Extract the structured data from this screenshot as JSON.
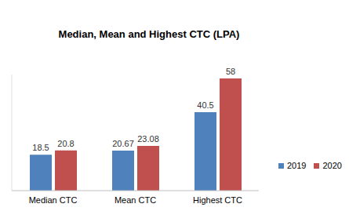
{
  "chart_data": {
    "type": "bar",
    "title": "Median, Mean and Highest CTC (LPA)",
    "categories": [
      "Median CTC",
      "Mean CTC",
      "Highest CTC"
    ],
    "series": [
      {
        "name": "2019",
        "color": "#4f81bd",
        "values": [
          18.5,
          20.67,
          40.5
        ]
      },
      {
        "name": "2020",
        "color": "#c0504d",
        "values": [
          20.8,
          23.08,
          58
        ]
      }
    ],
    "ylim": [
      0,
      60
    ],
    "grid": false,
    "legend": "right",
    "data_labels": true,
    "tick_labels": "x"
  }
}
